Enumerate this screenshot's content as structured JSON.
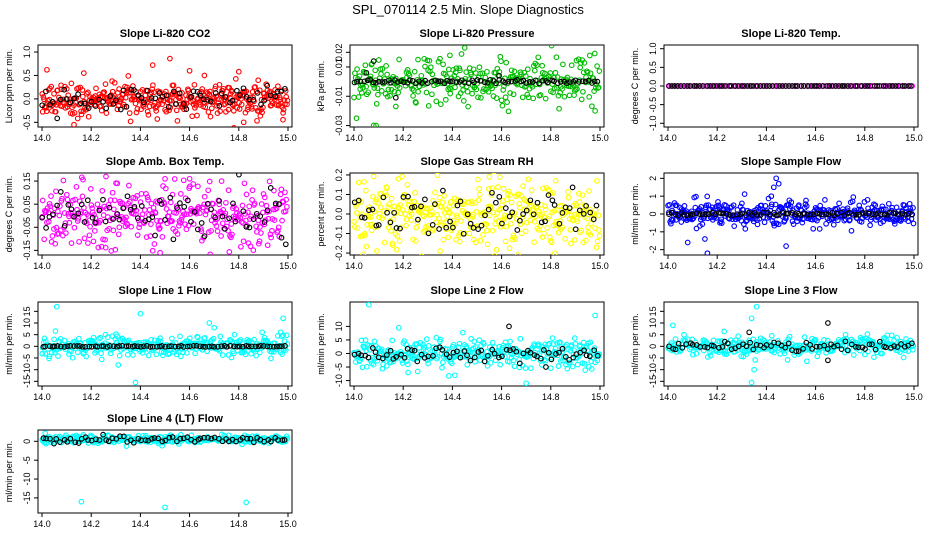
{
  "figure": {
    "title": "SPL_070114  2.5 Min. Slope Diagnostics"
  },
  "chart_data": [
    {
      "type": "scatter",
      "title": "Slope Li-820 CO2",
      "ylabel": "Licor ppm per min.",
      "x_range": [
        14.0,
        15.0
      ],
      "x_ticks": [
        "14.0",
        "14.2",
        "14.4",
        "14.6",
        "14.8",
        "15.0"
      ],
      "ylim": [
        -0.6,
        1.15
      ],
      "y_ticks": [
        "-0.5",
        "0.0",
        "0.5",
        "1.0"
      ],
      "series": [
        {
          "color": "#ff0000",
          "kind": "noisy",
          "sd": 0.18,
          "count": 380,
          "center": 0.0,
          "seed": 11,
          "outliers": [
            [
              14.02,
              0.62
            ],
            [
              14.13,
              -0.55
            ],
            [
              14.17,
              0.55
            ],
            [
              14.36,
              -0.48
            ],
            [
              14.45,
              0.72
            ],
            [
              14.52,
              0.86
            ],
            [
              14.6,
              0.6
            ],
            [
              14.78,
              -0.62
            ],
            [
              14.8,
              0.58
            ],
            [
              14.82,
              -0.5
            ],
            [
              14.98,
              -0.3
            ],
            [
              14.66,
              0.5
            ]
          ]
        },
        {
          "color": "#000000",
          "kind": "noisy",
          "sd": 0.13,
          "count": 70,
          "center": 0.0,
          "seed": 12,
          "outliers": []
        }
      ]
    },
    {
      "type": "scatter",
      "title": "Slope Li-820 Pressure",
      "ylabel": "kPa per min.",
      "x_range": [
        14.0,
        15.0
      ],
      "x_ticks": [
        "14.0",
        "14.2",
        "14.4",
        "14.6",
        "14.8",
        "15.0"
      ],
      "ylim": [
        -0.031,
        0.025
      ],
      "y_ticks": [
        "-0.03",
        "-0.01",
        "0.01",
        "0.02"
      ],
      "series": [
        {
          "color": "#00bb00",
          "kind": "noisy",
          "sd": 0.0075,
          "count": 330,
          "center": 0.0,
          "seed": 21,
          "outliers": [
            [
              14.45,
              0.023
            ],
            [
              14.01,
              -0.025
            ],
            [
              14.08,
              -0.03
            ],
            [
              14.09,
              -0.03
            ],
            [
              14.17,
              -0.017
            ],
            [
              14.98,
              -0.02
            ],
            [
              14.39,
              0.018
            ],
            [
              14.26,
              0.015
            ]
          ]
        },
        {
          "color": "#000000",
          "kind": "flat",
          "sd": 0.0012,
          "count": 80,
          "center": 0.0,
          "seed": 22,
          "outliers": [
            [
              14.08,
              0.014
            ],
            [
              14.17,
              -0.011
            ],
            [
              14.05,
              0.006
            ],
            [
              14.59,
              0.004
            ]
          ]
        }
      ]
    },
    {
      "type": "scatter",
      "title": "Slope Li-820 Temp.",
      "ylabel": "degrees C per min.",
      "x_range": [
        14.0,
        15.0
      ],
      "x_ticks": [
        "14.0",
        "14.2",
        "14.4",
        "14.6",
        "14.8",
        "15.0"
      ],
      "ylim": [
        -1.1,
        1.1
      ],
      "y_ticks": [
        "-1.0",
        "-0.5",
        "0.0",
        "0.5",
        "1.0"
      ],
      "series": [
        {
          "color": "#ff00ff",
          "kind": "flat",
          "sd": 0.0,
          "count": 80,
          "center": 0.0,
          "seed": 31,
          "outliers": []
        },
        {
          "color": "#000000",
          "kind": "flat",
          "sd": 0.0,
          "count": 78,
          "center": 0.0,
          "seed": 32,
          "outliers": []
        }
      ]
    },
    {
      "type": "scatter",
      "title": "Slope Amb. Box Temp.",
      "ylabel": "degrees C per min.",
      "x_range": [
        14.0,
        15.0
      ],
      "x_ticks": [
        "14.0",
        "14.2",
        "14.4",
        "14.6",
        "14.8",
        "15.0"
      ],
      "ylim": [
        -0.17,
        0.185
      ],
      "y_ticks": [
        "-0.15",
        "-0.05",
        "0.05",
        "0.15"
      ],
      "series": [
        {
          "color": "#ff00ff",
          "kind": "noisy",
          "sd": 0.065,
          "count": 360,
          "center": 0.0,
          "seed": 41,
          "outliers": [
            [
              14.26,
              0.17
            ],
            [
              14.5,
              0.16
            ],
            [
              14.48,
              -0.16
            ],
            [
              14.6,
              0.16
            ],
            [
              14.73,
              0.15
            ]
          ]
        },
        {
          "color": "#000000",
          "kind": "noisy",
          "sd": 0.05,
          "count": 70,
          "center": 0.0,
          "seed": 42,
          "outliers": []
        }
      ]
    },
    {
      "type": "scatter",
      "title": "Slope Gas Stream RH",
      "ylabel": "percent per min.",
      "x_range": [
        14.0,
        15.0
      ],
      "x_ticks": [
        "14.0",
        "14.2",
        "14.4",
        "14.6",
        "14.8",
        "15.0"
      ],
      "ylim": [
        -0.21,
        0.21
      ],
      "y_ticks": [
        "-0.2",
        "-0.1",
        "0.0",
        "0.1",
        "0.2"
      ],
      "series": [
        {
          "color": "#ffff00",
          "kind": "noisy",
          "sd": 0.08,
          "count": 380,
          "center": 0.0,
          "seed": 51,
          "outliers": [
            [
              14.55,
              0.19
            ],
            [
              14.18,
              0.18
            ],
            [
              14.35,
              -0.19
            ],
            [
              14.82,
              0.17
            ]
          ]
        },
        {
          "color": "#000000",
          "kind": "noisy",
          "sd": 0.065,
          "count": 70,
          "center": 0.0,
          "seed": 52,
          "outliers": []
        }
      ]
    },
    {
      "type": "scatter",
      "title": "Slope Sample Flow",
      "ylabel": "ml/min per min.",
      "x_range": [
        14.0,
        15.0
      ],
      "x_ticks": [
        "14.0",
        "14.2",
        "14.4",
        "14.6",
        "14.8",
        "15.0"
      ],
      "ylim": [
        -2.3,
        2.3
      ],
      "y_ticks": [
        "-2",
        "-1",
        "0",
        "1",
        "2"
      ],
      "series": [
        {
          "color": "#0000ff",
          "kind": "noisy",
          "sd": 0.35,
          "count": 380,
          "center": 0.0,
          "seed": 61,
          "outliers": [
            [
              14.44,
              2.0
            ],
            [
              14.45,
              1.7
            ],
            [
              14.43,
              1.5
            ],
            [
              14.16,
              -2.2
            ],
            [
              14.08,
              -1.6
            ],
            [
              14.48,
              -1.8
            ],
            [
              14.15,
              -1.4
            ],
            [
              14.42,
              1.0
            ]
          ]
        },
        {
          "color": "#000000",
          "kind": "flat",
          "sd": 0.08,
          "count": 80,
          "center": 0.0,
          "seed": 62,
          "outliers": []
        }
      ]
    },
    {
      "type": "scatter",
      "title": "Slope Line 1 Flow",
      "ylabel": "ml/min per min.",
      "x_range": [
        14.0,
        15.0
      ],
      "x_ticks": [
        "14.0",
        "14.2",
        "14.4",
        "14.6",
        "14.8",
        "15.0"
      ],
      "ylim": [
        -17,
        19
      ],
      "y_ticks": [
        "-15",
        "-10",
        "-5",
        "0",
        "5",
        "10",
        "15"
      ],
      "series": [
        {
          "color": "#00ffff",
          "kind": "noisy",
          "sd": 2.2,
          "count": 330,
          "center": 0.0,
          "seed": 71,
          "outliers": [
            [
              14.06,
              17
            ],
            [
              14.38,
              -15.5
            ],
            [
              14.4,
              14
            ],
            [
              14.68,
              10
            ],
            [
              14.7,
              8
            ],
            [
              14.98,
              12
            ],
            [
              14.97,
              6
            ],
            [
              14.31,
              -8
            ]
          ]
        },
        {
          "color": "#000000",
          "kind": "flat",
          "sd": 0.25,
          "count": 80,
          "center": 0.0,
          "seed": 72,
          "outliers": []
        }
      ]
    },
    {
      "type": "scatter",
      "title": "Slope Line 2 Flow",
      "ylabel": "ml/min per min.",
      "x_range": [
        14.0,
        15.0
      ],
      "x_ticks": [
        "14.0",
        "14.2",
        "14.4",
        "14.6",
        "14.8",
        "15.0"
      ],
      "ylim": [
        -12,
        19
      ],
      "y_ticks": [
        "-10",
        "-5",
        "0",
        "5",
        "10"
      ],
      "series": [
        {
          "color": "#00ffff",
          "kind": "noisy",
          "sd": 2.6,
          "count": 330,
          "center": 0.0,
          "seed": 81,
          "outliers": [
            [
              14.06,
              18
            ],
            [
              14.7,
              -11
            ],
            [
              14.98,
              14
            ],
            [
              14.41,
              -8
            ],
            [
              14.22,
              -7
            ]
          ]
        },
        {
          "color": "#000000",
          "kind": "noisy",
          "sd": 1.3,
          "count": 70,
          "center": 0.0,
          "seed": 82,
          "outliers": [
            [
              14.63,
              10
            ],
            [
              14.78,
              -5
            ]
          ]
        }
      ]
    },
    {
      "type": "scatter",
      "title": "Slope Line 3 Flow",
      "ylabel": "ml/min per min.",
      "x_range": [
        14.0,
        15.0
      ],
      "x_ticks": [
        "14.0",
        "14.2",
        "14.4",
        "14.6",
        "14.8",
        "15.0"
      ],
      "ylim": [
        -17,
        19
      ],
      "y_ticks": [
        "-15",
        "-10",
        "-5",
        "0",
        "5",
        "10",
        "15"
      ],
      "series": [
        {
          "color": "#00ffff",
          "kind": "noisy",
          "sd": 2.0,
          "count": 330,
          "center": 0.0,
          "seed": 91,
          "outliers": [
            [
              14.34,
              -15.5
            ],
            [
              14.36,
              17
            ],
            [
              14.34,
              12
            ],
            [
              14.02,
              9
            ],
            [
              14.35,
              -10
            ]
          ]
        },
        {
          "color": "#000000",
          "kind": "noisy",
          "sd": 1.0,
          "count": 70,
          "center": 0.0,
          "seed": 92,
          "outliers": [
            [
              14.65,
              10
            ],
            [
              14.33,
              6
            ],
            [
              14.65,
              -6
            ]
          ]
        }
      ]
    },
    {
      "type": "scatter",
      "title": "Slope Line 4 (LT) Flow",
      "ylabel": "ml/min per min.",
      "x_range": [
        14.0,
        15.0
      ],
      "x_ticks": [
        "14.0",
        "14.2",
        "14.4",
        "14.6",
        "14.8",
        "15.0"
      ],
      "ylim": [
        -19,
        3
      ],
      "y_ticks": [
        "-15",
        "-10",
        "-5",
        "0"
      ],
      "series": [
        {
          "color": "#00ffff",
          "kind": "noisy",
          "sd": 0.55,
          "count": 330,
          "center": 0.5,
          "seed": 101,
          "outliers": [
            [
              14.16,
              -16
            ],
            [
              14.5,
              -17.5
            ],
            [
              14.83,
              -16.2
            ]
          ]
        },
        {
          "color": "#000000",
          "kind": "noisy",
          "sd": 0.45,
          "count": 70,
          "center": 0.5,
          "seed": 102,
          "outliers": []
        }
      ]
    }
  ]
}
